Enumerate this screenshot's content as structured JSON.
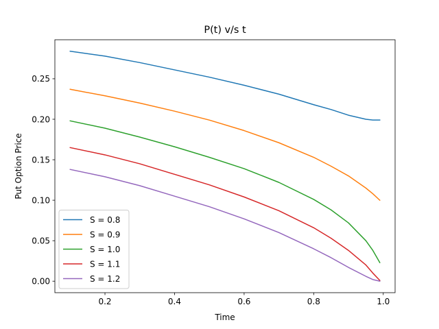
{
  "chart_data": {
    "type": "line",
    "title": "P(t) v/s t",
    "xlabel": "Time",
    "ylabel": "Put Option Price",
    "xlim": [
      0.056,
      1.034
    ],
    "ylim": [
      -0.0142,
      0.2982
    ],
    "xticks": [
      0.2,
      0.4,
      0.6,
      0.8,
      1.0
    ],
    "xtick_labels": [
      "0.2",
      "0.4",
      "0.6",
      "0.8",
      "1.0"
    ],
    "yticks": [
      0.0,
      0.05,
      0.1,
      0.15,
      0.2,
      0.25
    ],
    "ytick_labels": [
      "0.00",
      "0.05",
      "0.10",
      "0.15",
      "0.20",
      "0.25"
    ],
    "grid": false,
    "legend_position": "lower-left",
    "x": [
      0.1,
      0.2,
      0.3,
      0.4,
      0.5,
      0.6,
      0.7,
      0.8,
      0.85,
      0.9,
      0.95,
      0.97,
      0.99
    ],
    "series": [
      {
        "name": "S = 0.8",
        "color": "#1f77b4",
        "values": [
          0.284,
          0.278,
          0.27,
          0.261,
          0.252,
          0.242,
          0.231,
          0.218,
          0.212,
          0.205,
          0.2,
          0.199,
          0.199
        ]
      },
      {
        "name": "S = 0.9",
        "color": "#ff7f0e",
        "values": [
          0.237,
          0.229,
          0.22,
          0.21,
          0.199,
          0.186,
          0.171,
          0.153,
          0.142,
          0.13,
          0.115,
          0.108,
          0.1
        ]
      },
      {
        "name": "S = 1.0",
        "color": "#2ca02c",
        "values": [
          0.198,
          0.189,
          0.178,
          0.166,
          0.153,
          0.139,
          0.122,
          0.101,
          0.088,
          0.072,
          0.05,
          0.038,
          0.023
        ]
      },
      {
        "name": "S = 1.1",
        "color": "#d62728",
        "values": [
          0.165,
          0.156,
          0.145,
          0.132,
          0.119,
          0.104,
          0.087,
          0.066,
          0.053,
          0.038,
          0.02,
          0.01,
          0.001
        ]
      },
      {
        "name": "S = 1.2",
        "color": "#9467bd",
        "values": [
          0.138,
          0.129,
          0.118,
          0.105,
          0.092,
          0.077,
          0.06,
          0.04,
          0.029,
          0.017,
          0.006,
          0.002,
          0.0
        ]
      }
    ]
  }
}
